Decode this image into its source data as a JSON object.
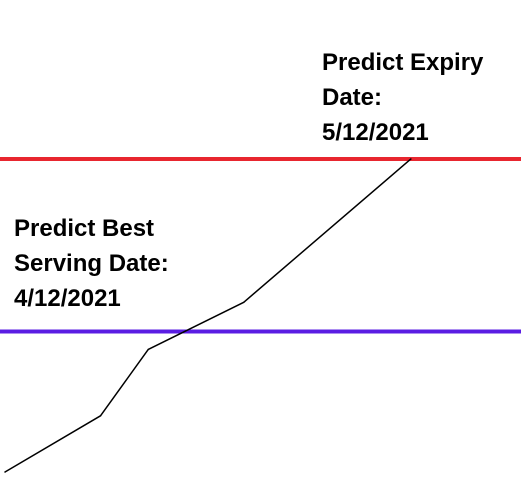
{
  "chart_data": {
    "type": "line",
    "series": [
      {
        "values": [
          [
            0,
            0
          ],
          [
            1,
            1
          ],
          [
            1.5,
            2.18
          ],
          [
            2.5,
            3.02
          ],
          [
            4.25,
            5.57
          ]
        ]
      }
    ],
    "thresholds": [
      {
        "id": "expiry",
        "value": 5.57,
        "label_lines": [
          "Predict Expiry",
          "Date:",
          "5/12/2021"
        ],
        "color": "#e8262f"
      },
      {
        "id": "best-serving",
        "value": 2.5,
        "label_lines": [
          "Predict Best",
          "Serving Date:",
          "4/12/2021"
        ],
        "color": "#5a1de3"
      }
    ],
    "line_color": "#000000",
    "grid": false,
    "legend": "none",
    "title": "",
    "xlabel": "",
    "ylabel": ""
  }
}
